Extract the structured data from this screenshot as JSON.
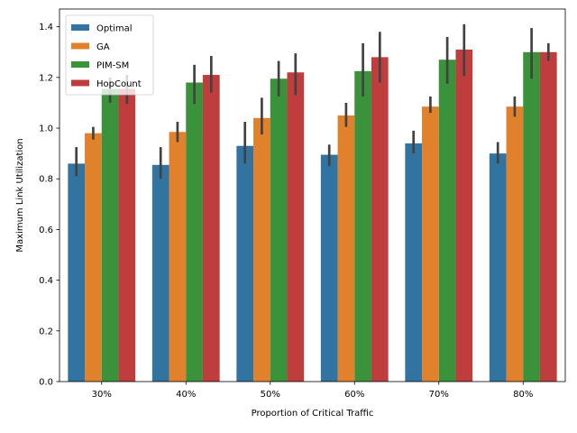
{
  "chart_data": {
    "type": "bar",
    "xlabel": "Proportion of Critical Traffic",
    "ylabel": "Maximum Link Utilization",
    "categories": [
      "30%",
      "40%",
      "50%",
      "60%",
      "70%",
      "80%"
    ],
    "ylim": [
      0,
      1.47
    ],
    "yticks": [
      0.0,
      0.2,
      0.4,
      0.6,
      0.8,
      1.0,
      1.2,
      1.4
    ],
    "ytick_labels": [
      "0.0",
      "0.2",
      "0.4",
      "0.6",
      "0.8",
      "1.0",
      "1.2",
      "1.4"
    ],
    "legend_position": "top-left",
    "grid": false,
    "series": [
      {
        "name": "Optimal",
        "color": "#3274a1",
        "values": [
          0.86,
          0.855,
          0.93,
          0.895,
          0.94,
          0.9
        ],
        "error_low": [
          0.81,
          0.8,
          0.86,
          0.85,
          0.9,
          0.86
        ],
        "error_high": [
          0.925,
          0.925,
          1.025,
          0.935,
          0.99,
          0.945
        ]
      },
      {
        "name": "GA",
        "color": "#e1812c",
        "values": [
          0.98,
          0.985,
          1.04,
          1.05,
          1.085,
          1.085
        ],
        "error_low": [
          0.955,
          0.945,
          0.975,
          1.005,
          1.06,
          1.045
        ],
        "error_high": [
          1.005,
          1.025,
          1.12,
          1.1,
          1.125,
          1.125
        ]
      },
      {
        "name": "PIM-SM",
        "color": "#3a923a",
        "values": [
          1.155,
          1.18,
          1.195,
          1.225,
          1.27,
          1.3
        ],
        "error_low": [
          1.1,
          1.095,
          1.125,
          1.125,
          1.175,
          1.195
        ],
        "error_high": [
          1.2,
          1.25,
          1.265,
          1.335,
          1.36,
          1.395
        ]
      },
      {
        "name": "HopCount",
        "color": "#c03d3e",
        "values": [
          1.155,
          1.21,
          1.22,
          1.28,
          1.31,
          1.3
        ],
        "error_low": [
          1.095,
          1.14,
          1.13,
          1.18,
          1.205,
          1.265
        ],
        "error_high": [
          1.21,
          1.285,
          1.295,
          1.38,
          1.41,
          1.335
        ]
      }
    ]
  }
}
